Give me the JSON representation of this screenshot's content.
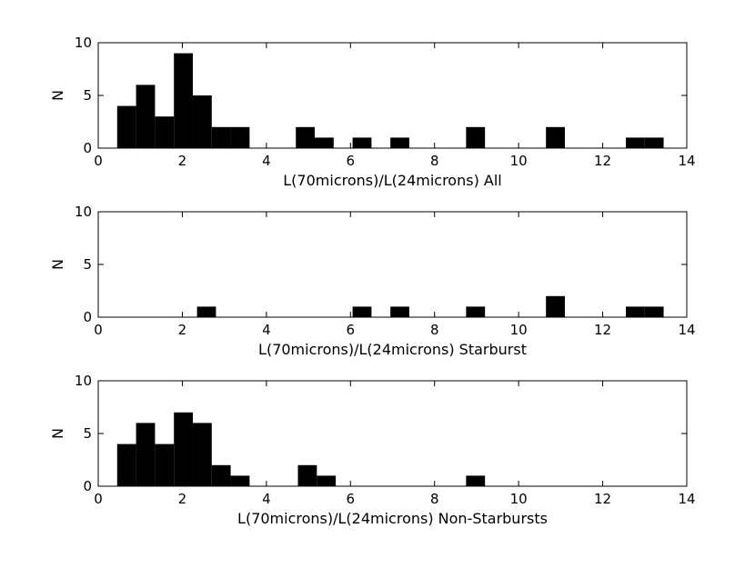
{
  "chart_data": [
    {
      "type": "bar",
      "xlabel": "L(70microns)/L(24microns) All",
      "ylabel": "N",
      "xlim": [
        0,
        14
      ],
      "ylim": [
        0,
        10
      ],
      "xticks": [
        "0",
        "2",
        "4",
        "6",
        "8",
        "10",
        "12",
        "14"
      ],
      "yticks": [
        "0",
        "5",
        "10"
      ],
      "bin_width": 0.45,
      "bins": [
        {
          "x0": 0.45,
          "count": 4
        },
        {
          "x0": 0.9,
          "count": 6
        },
        {
          "x0": 1.35,
          "count": 3
        },
        {
          "x0": 1.8,
          "count": 9
        },
        {
          "x0": 2.25,
          "count": 5
        },
        {
          "x0": 2.7,
          "count": 2
        },
        {
          "x0": 3.15,
          "count": 2
        },
        {
          "x0": 4.7,
          "count": 2
        },
        {
          "x0": 5.15,
          "count": 1
        },
        {
          "x0": 6.05,
          "count": 1
        },
        {
          "x0": 6.95,
          "count": 1
        },
        {
          "x0": 8.75,
          "count": 2
        },
        {
          "x0": 10.65,
          "count": 2
        },
        {
          "x0": 12.55,
          "count": 1
        },
        {
          "x0": 13.0,
          "count": 1
        }
      ],
      "grid": false,
      "color": "#000000"
    },
    {
      "type": "bar",
      "xlabel": "L(70microns)/L(24microns) Starburst",
      "ylabel": "N",
      "xlim": [
        0,
        14
      ],
      "ylim": [
        0,
        10
      ],
      "xticks": [
        "0",
        "2",
        "4",
        "6",
        "8",
        "10",
        "12",
        "14"
      ],
      "yticks": [
        "0",
        "5",
        "10"
      ],
      "bin_width": 0.45,
      "bins": [
        {
          "x0": 2.35,
          "count": 1
        },
        {
          "x0": 6.05,
          "count": 1
        },
        {
          "x0": 6.95,
          "count": 1
        },
        {
          "x0": 8.75,
          "count": 1
        },
        {
          "x0": 10.65,
          "count": 2
        },
        {
          "x0": 12.55,
          "count": 1
        },
        {
          "x0": 13.0,
          "count": 1
        }
      ],
      "grid": false,
      "color": "#000000"
    },
    {
      "type": "bar",
      "xlabel": "L(70microns)/L(24microns) Non-Starbursts",
      "ylabel": "N",
      "xlim": [
        0,
        14
      ],
      "ylim": [
        0,
        10
      ],
      "xticks": [
        "0",
        "2",
        "4",
        "6",
        "8",
        "10",
        "12",
        "14"
      ],
      "yticks": [
        "0",
        "5",
        "10"
      ],
      "bin_width": 0.45,
      "bins": [
        {
          "x0": 0.45,
          "count": 4
        },
        {
          "x0": 0.9,
          "count": 6
        },
        {
          "x0": 1.35,
          "count": 4
        },
        {
          "x0": 1.8,
          "count": 7
        },
        {
          "x0": 2.25,
          "count": 6
        },
        {
          "x0": 2.7,
          "count": 2
        },
        {
          "x0": 3.15,
          "count": 1
        },
        {
          "x0": 4.75,
          "count": 2
        },
        {
          "x0": 5.2,
          "count": 1
        },
        {
          "x0": 8.75,
          "count": 1
        }
      ],
      "grid": false,
      "color": "#000000"
    }
  ]
}
